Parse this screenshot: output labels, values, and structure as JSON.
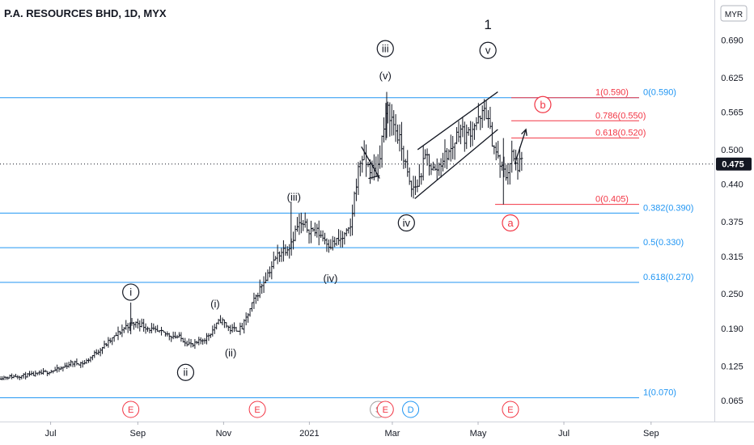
{
  "chart_data": {
    "type": "line",
    "style": "ohlc-bars",
    "title": "P.A. RESOURCES BHD, 1D, MYX",
    "currency": "MYR",
    "last_price": "0.475",
    "ylim": [
      0.04,
      0.72
    ],
    "y_ticks": [
      "0.690",
      "0.625",
      "0.565",
      "0.500",
      "0.440",
      "0.375",
      "0.315",
      "0.250",
      "0.190",
      "0.125",
      "0.065"
    ],
    "x_ticks": [
      {
        "label": "Jul",
        "date": "2020-07-01"
      },
      {
        "label": "Sep",
        "date": "2020-09-01"
      },
      {
        "label": "Nov",
        "date": "2020-11-01"
      },
      {
        "label": "2021",
        "date": "2021-01-01"
      },
      {
        "label": "Mar",
        "date": "2021-03-01"
      },
      {
        "label": "May",
        "date": "2021-05-01"
      },
      {
        "label": "Jul",
        "date": "2021-07-01"
      },
      {
        "label": "Sep",
        "date": "2021-09-01"
      }
    ],
    "xlim": [
      "2020-05-26",
      "2021-10-16"
    ],
    "price_path": [
      [
        "2020-05-26",
        0.105
      ],
      [
        "2020-06-20",
        0.11
      ],
      [
        "2020-07-08",
        0.12
      ],
      [
        "2020-07-15",
        0.13
      ],
      [
        "2020-07-25",
        0.13
      ],
      [
        "2020-08-03",
        0.15
      ],
      [
        "2020-08-13",
        0.17
      ],
      [
        "2020-08-24",
        0.195
      ],
      [
        "2020-09-01",
        0.2
      ],
      [
        "2020-09-13",
        0.185
      ],
      [
        "2020-09-30",
        0.175
      ],
      [
        "2020-10-10",
        0.16
      ],
      [
        "2020-10-20",
        0.175
      ],
      [
        "2020-10-30",
        0.205
      ],
      [
        "2020-11-06",
        0.188
      ],
      [
        "2020-11-14",
        0.19
      ],
      [
        "2020-11-22",
        0.235
      ],
      [
        "2020-11-30",
        0.275
      ],
      [
        "2020-12-10",
        0.32
      ],
      [
        "2020-12-18",
        0.335
      ],
      [
        "2020-12-24",
        0.37
      ],
      [
        "2020-12-30",
        0.365
      ],
      [
        "2021-01-08",
        0.355
      ],
      [
        "2021-01-16",
        0.335
      ],
      [
        "2021-01-24",
        0.345
      ],
      [
        "2021-01-30",
        0.36
      ],
      [
        "2021-02-03",
        0.44
      ],
      [
        "2021-02-07",
        0.49
      ],
      [
        "2021-02-12",
        0.47
      ],
      [
        "2021-02-18",
        0.46
      ],
      [
        "2021-02-22",
        0.525
      ],
      [
        "2021-02-26",
        0.57
      ],
      [
        "2021-03-04",
        0.53
      ],
      [
        "2021-03-08",
        0.5
      ],
      [
        "2021-03-14",
        0.43
      ],
      [
        "2021-03-19",
        0.44
      ],
      [
        "2021-03-25",
        0.49
      ],
      [
        "2021-03-31",
        0.46
      ],
      [
        "2021-04-06",
        0.485
      ],
      [
        "2021-04-12",
        0.5
      ],
      [
        "2021-04-18",
        0.54
      ],
      [
        "2021-04-22",
        0.52
      ],
      [
        "2021-04-28",
        0.545
      ],
      [
        "2021-05-03",
        0.55
      ],
      [
        "2021-05-06",
        0.575
      ],
      [
        "2021-05-09",
        0.535
      ],
      [
        "2021-05-13",
        0.5
      ],
      [
        "2021-05-17",
        0.47
      ],
      [
        "2021-05-21",
        0.455
      ],
      [
        "2021-05-25",
        0.49
      ],
      [
        "2021-05-28",
        0.47
      ],
      [
        "2021-06-01",
        0.475
      ]
    ],
    "fibonacci_blue": [
      {
        "label": "0(0.590)",
        "value": 0.59
      },
      {
        "label": "0.382(0.390)",
        "value": 0.39
      },
      {
        "label": "0.5(0.330)",
        "value": 0.33
      },
      {
        "label": "0.618(0.270)",
        "value": 0.27
      },
      {
        "label": "1(0.070)",
        "value": 0.07
      }
    ],
    "fibonacci_red": [
      {
        "label": "1(0.590)",
        "value": 0.59
      },
      {
        "label": "0.786(0.550)",
        "value": 0.55
      },
      {
        "label": "0.618(0.520)",
        "value": 0.52
      },
      {
        "label": "0(0.405)",
        "value": 0.405
      }
    ],
    "wave_labels": [
      {
        "text": "i",
        "style": "circle",
        "date": "2020-08-27",
        "value": 0.253
      },
      {
        "text": "ii",
        "style": "circle",
        "date": "2020-10-05",
        "value": 0.114
      },
      {
        "text": "(i)",
        "style": "plain",
        "date": "2020-10-26",
        "value": 0.233
      },
      {
        "text": "(ii)",
        "style": "plain",
        "date": "2020-11-06",
        "value": 0.148
      },
      {
        "text": "(iii)",
        "style": "plain",
        "date": "2020-12-21",
        "value": 0.418
      },
      {
        "text": "(iv)",
        "style": "plain",
        "date": "2021-01-16",
        "value": 0.277
      },
      {
        "text": "iii",
        "style": "circle",
        "date": "2021-02-24",
        "value": 0.675
      },
      {
        "text": "(v)",
        "style": "plain",
        "date": "2021-02-24",
        "value": 0.628
      },
      {
        "text": "iv",
        "style": "circle",
        "date": "2021-03-11",
        "value": 0.373
      },
      {
        "text": "v",
        "style": "circle",
        "date": "2021-05-08",
        "value": 0.672
      },
      {
        "text": "1",
        "style": "plain-large",
        "date": "2021-05-08",
        "value": 0.715
      },
      {
        "text": "b",
        "style": "circle-red",
        "date": "2021-06-16",
        "value": 0.578
      },
      {
        "text": "a",
        "style": "circle-red",
        "date": "2021-05-24",
        "value": 0.373
      }
    ],
    "event_markers": [
      {
        "text": "E",
        "kind": "earnings",
        "date": "2020-08-27"
      },
      {
        "text": "E",
        "kind": "earnings",
        "date": "2020-11-25"
      },
      {
        "text": "S",
        "kind": "split",
        "date": "2021-02-19"
      },
      {
        "text": "E",
        "kind": "earnings",
        "date": "2021-02-24"
      },
      {
        "text": "D",
        "kind": "dividend",
        "date": "2021-03-14"
      },
      {
        "text": "E",
        "kind": "earnings",
        "date": "2021-05-24"
      }
    ],
    "trendlines": [
      {
        "from": [
          "2021-03-17",
          0.415
        ],
        "to": [
          "2021-05-15",
          0.535
        ]
      },
      {
        "from": [
          "2021-03-19",
          0.5
        ],
        "to": [
          "2021-05-15",
          0.6
        ]
      },
      {
        "from": [
          "2021-02-07",
          0.505
        ],
        "to": [
          "2021-02-20",
          0.45
        ]
      },
      {
        "from": [
          "2021-02-12",
          0.45
        ],
        "to": [
          "2021-02-20",
          0.455
        ]
      },
      {
        "from": [
          "2021-05-27",
          0.475
        ],
        "to": [
          "2021-06-04",
          0.535
        ],
        "arrow": true
      }
    ],
    "colors": {
      "bars": "#131722",
      "fib_blue": "#2196f3",
      "fib_red": "#f23645",
      "event_earnings": "#f23645",
      "event_split": "#a0a0a0",
      "event_dividend": "#2196f3",
      "price_line": "#131722",
      "axis_text": "#131722"
    }
  }
}
